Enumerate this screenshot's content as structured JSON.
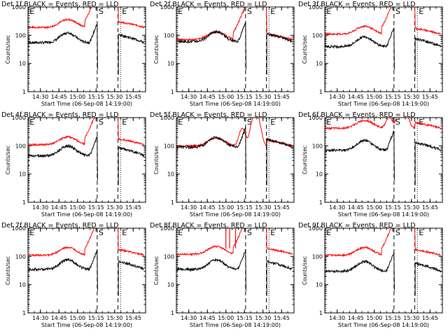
{
  "chart_data": {
    "type": "line",
    "yscale": "log",
    "ylim": [
      1,
      1000
    ],
    "xticks": [
      "14:30",
      "14:45",
      "15:00",
      "15:15",
      "15:30",
      "15:45"
    ],
    "yticks": [
      "1",
      "10",
      "100",
      "1000"
    ],
    "ylabel": "Counts/sec",
    "xlabel": "Start Time (06-Sep-08 14:19:00)",
    "xlabel_variant": "Start Time (06-Sep-08 14:19:00)",
    "marker_labels": {
      "start": "E",
      "saa": "S",
      "end": "E"
    },
    "colors": {
      "events": "#000000",
      "lld": "#ff0000"
    },
    "series_names": [
      "Events",
      "LLD"
    ],
    "panels": [
      {
        "title": "Det 1f BLACK = Events, RED = LLD",
        "events_base": 55,
        "lld_base": 190,
        "xlabel_alt": false
      },
      {
        "title": "Det 2f BLACK = Events, RED = LLD",
        "events_base": 60,
        "lld_base": 70,
        "xlabel_alt": false
      },
      {
        "title": "Det 3f BLACK = Events, RED = LLD",
        "events_base": 40,
        "lld_base": 110,
        "xlabel_alt": false
      },
      {
        "title": "Det 4f BLACK = Events, RED = LLD",
        "events_base": 45,
        "lld_base": 110,
        "xlabel_alt": false
      },
      {
        "title": "Det 5f BLACK = Events, RED = LLD",
        "events_base": 90,
        "lld_base": 100,
        "xlabel_alt": false
      },
      {
        "title": "Det 6f BLACK = Events, RED = LLD",
        "events_base": 70,
        "lld_base": 420,
        "xlabel_alt": true
      },
      {
        "title": "Det 7f BLACK = Events, RED = LLD",
        "events_base": 35,
        "lld_base": 110,
        "xlabel_alt": false
      },
      {
        "title": "Det 8f BLACK = Events, RED = LLD",
        "events_base": 35,
        "lld_base": 120,
        "xlabel_alt": false
      },
      {
        "title": "Det 9f BLACK = Events, RED = LLD",
        "events_base": 30,
        "lld_base": 110,
        "xlabel_alt": true
      }
    ]
  }
}
